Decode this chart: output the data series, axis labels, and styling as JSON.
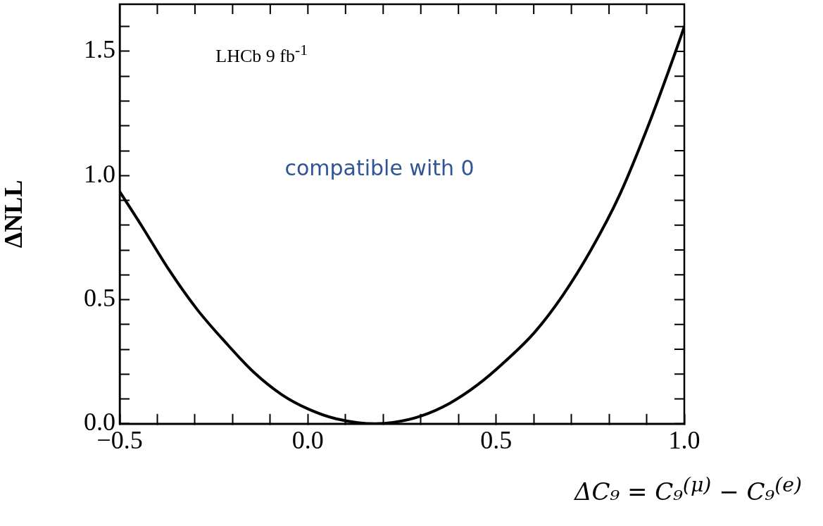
{
  "chart_data": {
    "type": "line",
    "xlabel": "ΔC₉ = C₉$^{(μ)}$ − C₉$^{(e)}$",
    "ylabel": "ΔNLL",
    "annotations": [
      "LHCb 9 fb$^{-1}$",
      "compatible with 0"
    ],
    "marker": "none",
    "line_style": "solid",
    "xlim": [
      -0.5,
      1.0
    ],
    "ylim": [
      0,
      1.69
    ],
    "xticks": [
      {
        "value": -0.5,
        "label": "−0.5"
      },
      {
        "value": -0.4,
        "label": null
      },
      {
        "value": -0.3,
        "label": null
      },
      {
        "value": -0.2,
        "label": null
      },
      {
        "value": -0.1,
        "label": null
      },
      {
        "value": 0,
        "label": "0.0"
      },
      {
        "value": 0.1,
        "label": null
      },
      {
        "value": 0.2,
        "label": null
      },
      {
        "value": 0.3,
        "label": null
      },
      {
        "value": 0.4,
        "label": null
      },
      {
        "value": 0.5,
        "label": "0.5"
      },
      {
        "value": 0.6,
        "label": null
      },
      {
        "value": 0.7,
        "label": null
      },
      {
        "value": 0.8,
        "label": null
      },
      {
        "value": 0.9,
        "label": null
      },
      {
        "value": 1.0,
        "label": "1.0"
      }
    ],
    "yticks": [
      {
        "value": 0,
        "label": "0.0"
      },
      {
        "value": 0.1,
        "label": null
      },
      {
        "value": 0.2,
        "label": null
      },
      {
        "value": 0.3,
        "label": null
      },
      {
        "value": 0.4,
        "label": null
      },
      {
        "value": 0.5,
        "label": "0.5"
      },
      {
        "value": 0.6,
        "label": null
      },
      {
        "value": 0.7,
        "label": null
      },
      {
        "value": 0.8,
        "label": null
      },
      {
        "value": 0.9,
        "label": null
      },
      {
        "value": 1.0,
        "label": "1.0"
      },
      {
        "value": 1.1,
        "label": null
      },
      {
        "value": 1.2,
        "label": null
      },
      {
        "value": 1.3,
        "label": null
      },
      {
        "value": 1.4,
        "label": null
      },
      {
        "value": 1.5,
        "label": "1.5"
      },
      {
        "value": 1.6,
        "label": null
      }
    ],
    "series": [
      {
        "color": "#000000",
        "x": [
          -0.5,
          -0.444,
          -0.369,
          -0.294,
          -0.219,
          -0.144,
          -0.069,
          0.0,
          0.075,
          0.18,
          0.226,
          0.3,
          0.376,
          0.451,
          0.526,
          0.602,
          0.677,
          0.752,
          0.827,
          0.902,
          0.977,
          1.0
        ],
        "values": [
          0.935,
          0.803,
          0.62,
          0.46,
          0.328,
          0.208,
          0.117,
          0.06,
          0.02,
          0.0,
          0.005,
          0.031,
          0.082,
          0.157,
          0.254,
          0.368,
          0.517,
          0.7,
          0.918,
          1.192,
          1.5,
          1.6
        ]
      }
    ]
  }
}
